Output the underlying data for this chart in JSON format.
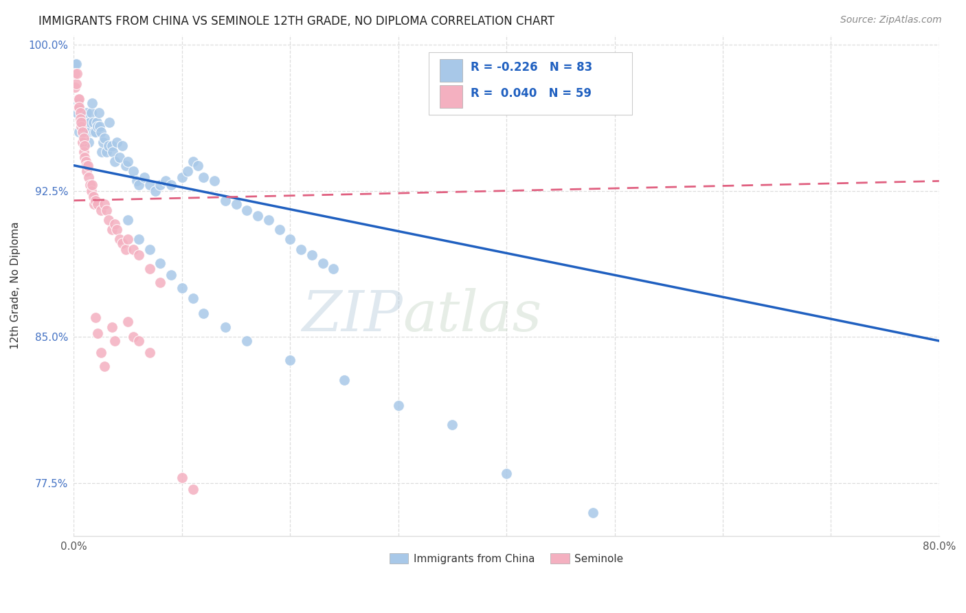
{
  "title": "IMMIGRANTS FROM CHINA VS SEMINOLE 12TH GRADE, NO DIPLOMA CORRELATION CHART",
  "source": "Source: ZipAtlas.com",
  "legend_blue_label": "Immigrants from China",
  "legend_pink_label": "Seminole",
  "watermark": "ZIPatlas",
  "blue_color": "#a8c8e8",
  "pink_color": "#f4b0c0",
  "blue_line_color": "#2060c0",
  "pink_line_color": "#e06080",
  "blue_scatter": [
    [
      0.001,
      0.99
    ],
    [
      0.002,
      0.99
    ],
    [
      0.003,
      0.965
    ],
    [
      0.004,
      0.97
    ],
    [
      0.005,
      0.955
    ],
    [
      0.006,
      0.96
    ],
    [
      0.007,
      0.96
    ],
    [
      0.008,
      0.955
    ],
    [
      0.009,
      0.95
    ],
    [
      0.01,
      0.95
    ],
    [
      0.01,
      0.96
    ],
    [
      0.011,
      0.955
    ],
    [
      0.012,
      0.96
    ],
    [
      0.012,
      0.965
    ],
    [
      0.013,
      0.955
    ],
    [
      0.014,
      0.95
    ],
    [
      0.015,
      0.96
    ],
    [
      0.016,
      0.965
    ],
    [
      0.017,
      0.97
    ],
    [
      0.018,
      0.96
    ],
    [
      0.019,
      0.955
    ],
    [
      0.02,
      0.955
    ],
    [
      0.021,
      0.96
    ],
    [
      0.022,
      0.958
    ],
    [
      0.023,
      0.965
    ],
    [
      0.024,
      0.958
    ],
    [
      0.025,
      0.955
    ],
    [
      0.026,
      0.945
    ],
    [
      0.027,
      0.95
    ],
    [
      0.028,
      0.952
    ],
    [
      0.03,
      0.945
    ],
    [
      0.032,
      0.948
    ],
    [
      0.033,
      0.96
    ],
    [
      0.035,
      0.948
    ],
    [
      0.036,
      0.945
    ],
    [
      0.038,
      0.94
    ],
    [
      0.04,
      0.95
    ],
    [
      0.042,
      0.942
    ],
    [
      0.045,
      0.948
    ],
    [
      0.048,
      0.938
    ],
    [
      0.05,
      0.94
    ],
    [
      0.055,
      0.935
    ],
    [
      0.058,
      0.93
    ],
    [
      0.06,
      0.928
    ],
    [
      0.065,
      0.932
    ],
    [
      0.07,
      0.928
    ],
    [
      0.075,
      0.925
    ],
    [
      0.08,
      0.928
    ],
    [
      0.085,
      0.93
    ],
    [
      0.09,
      0.928
    ],
    [
      0.1,
      0.932
    ],
    [
      0.105,
      0.935
    ],
    [
      0.11,
      0.94
    ],
    [
      0.115,
      0.938
    ],
    [
      0.12,
      0.932
    ],
    [
      0.13,
      0.93
    ],
    [
      0.14,
      0.92
    ],
    [
      0.15,
      0.918
    ],
    [
      0.16,
      0.915
    ],
    [
      0.17,
      0.912
    ],
    [
      0.18,
      0.91
    ],
    [
      0.19,
      0.905
    ],
    [
      0.2,
      0.9
    ],
    [
      0.21,
      0.895
    ],
    [
      0.22,
      0.892
    ],
    [
      0.23,
      0.888
    ],
    [
      0.24,
      0.885
    ],
    [
      0.05,
      0.91
    ],
    [
      0.06,
      0.9
    ],
    [
      0.07,
      0.895
    ],
    [
      0.08,
      0.888
    ],
    [
      0.09,
      0.882
    ],
    [
      0.1,
      0.875
    ],
    [
      0.11,
      0.87
    ],
    [
      0.12,
      0.862
    ],
    [
      0.14,
      0.855
    ],
    [
      0.16,
      0.848
    ],
    [
      0.2,
      0.838
    ],
    [
      0.25,
      0.828
    ],
    [
      0.3,
      0.815
    ],
    [
      0.35,
      0.805
    ],
    [
      0.4,
      0.78
    ],
    [
      0.48,
      0.76
    ]
  ],
  "pink_scatter": [
    [
      0.001,
      0.985
    ],
    [
      0.001,
      0.978
    ],
    [
      0.002,
      0.98
    ],
    [
      0.003,
      0.985
    ],
    [
      0.004,
      0.972
    ],
    [
      0.004,
      0.968
    ],
    [
      0.005,
      0.972
    ],
    [
      0.005,
      0.968
    ],
    [
      0.006,
      0.965
    ],
    [
      0.006,
      0.962
    ],
    [
      0.007,
      0.958
    ],
    [
      0.007,
      0.96
    ],
    [
      0.008,
      0.955
    ],
    [
      0.008,
      0.95
    ],
    [
      0.009,
      0.952
    ],
    [
      0.009,
      0.945
    ],
    [
      0.01,
      0.948
    ],
    [
      0.01,
      0.942
    ],
    [
      0.011,
      0.94
    ],
    [
      0.012,
      0.938
    ],
    [
      0.012,
      0.935
    ],
    [
      0.013,
      0.938
    ],
    [
      0.014,
      0.932
    ],
    [
      0.015,
      0.928
    ],
    [
      0.016,
      0.925
    ],
    [
      0.017,
      0.928
    ],
    [
      0.018,
      0.922
    ],
    [
      0.019,
      0.918
    ],
    [
      0.02,
      0.92
    ],
    [
      0.022,
      0.918
    ],
    [
      0.025,
      0.915
    ],
    [
      0.028,
      0.918
    ],
    [
      0.03,
      0.915
    ],
    [
      0.032,
      0.91
    ],
    [
      0.035,
      0.905
    ],
    [
      0.038,
      0.908
    ],
    [
      0.04,
      0.905
    ],
    [
      0.042,
      0.9
    ],
    [
      0.045,
      0.898
    ],
    [
      0.048,
      0.895
    ],
    [
      0.05,
      0.9
    ],
    [
      0.055,
      0.895
    ],
    [
      0.06,
      0.892
    ],
    [
      0.07,
      0.885
    ],
    [
      0.08,
      0.878
    ],
    [
      0.02,
      0.86
    ],
    [
      0.022,
      0.852
    ],
    [
      0.025,
      0.842
    ],
    [
      0.028,
      0.835
    ],
    [
      0.035,
      0.855
    ],
    [
      0.038,
      0.848
    ],
    [
      0.05,
      0.858
    ],
    [
      0.055,
      0.85
    ],
    [
      0.06,
      0.848
    ],
    [
      0.07,
      0.842
    ],
    [
      0.1,
      0.778
    ],
    [
      0.11,
      0.772
    ]
  ],
  "xlim": [
    0.0,
    0.8
  ],
  "ylim": [
    0.748,
    1.005
  ],
  "xticks": [
    0.0,
    0.1,
    0.2,
    0.3,
    0.4,
    0.5,
    0.6,
    0.7,
    0.8
  ],
  "yticks": [
    0.775,
    0.85,
    0.925,
    1.0
  ],
  "xticklabels": [
    "0.0%",
    "",
    "",
    "",
    "",
    "",
    "",
    "",
    "80.0%"
  ],
  "yticklabels": [
    "77.5%",
    "85.0%",
    "92.5%",
    "100.0%"
  ],
  "blue_line_x": [
    0.0,
    0.8
  ],
  "blue_line_y": [
    0.938,
    0.848
  ],
  "pink_line_x": [
    0.0,
    0.8
  ],
  "pink_line_y": [
    0.92,
    0.93
  ],
  "grid_color": "#dddddd",
  "background_color": "#ffffff"
}
